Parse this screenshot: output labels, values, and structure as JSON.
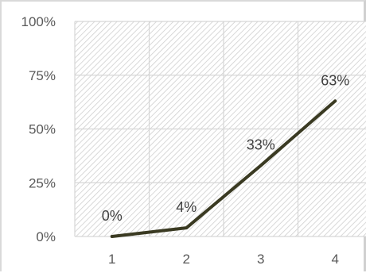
{
  "chart_data": {
    "type": "line",
    "title": "",
    "xlabel": "",
    "ylabel": "",
    "categories": [
      "1",
      "2",
      "3",
      "4"
    ],
    "series": [
      {
        "values": [
          0,
          4,
          33,
          63
        ],
        "data_labels": [
          "0%",
          "4%",
          "33%",
          "63%"
        ],
        "color": "#3a3a22"
      }
    ],
    "ylim": [
      0,
      100
    ],
    "y_ticks": [
      0,
      25,
      50,
      75,
      100
    ],
    "y_tick_labels": [
      "0%",
      "25%",
      "50%",
      "75%",
      "100%"
    ],
    "grid": true,
    "plot_background": "hatched",
    "legend": "none"
  }
}
